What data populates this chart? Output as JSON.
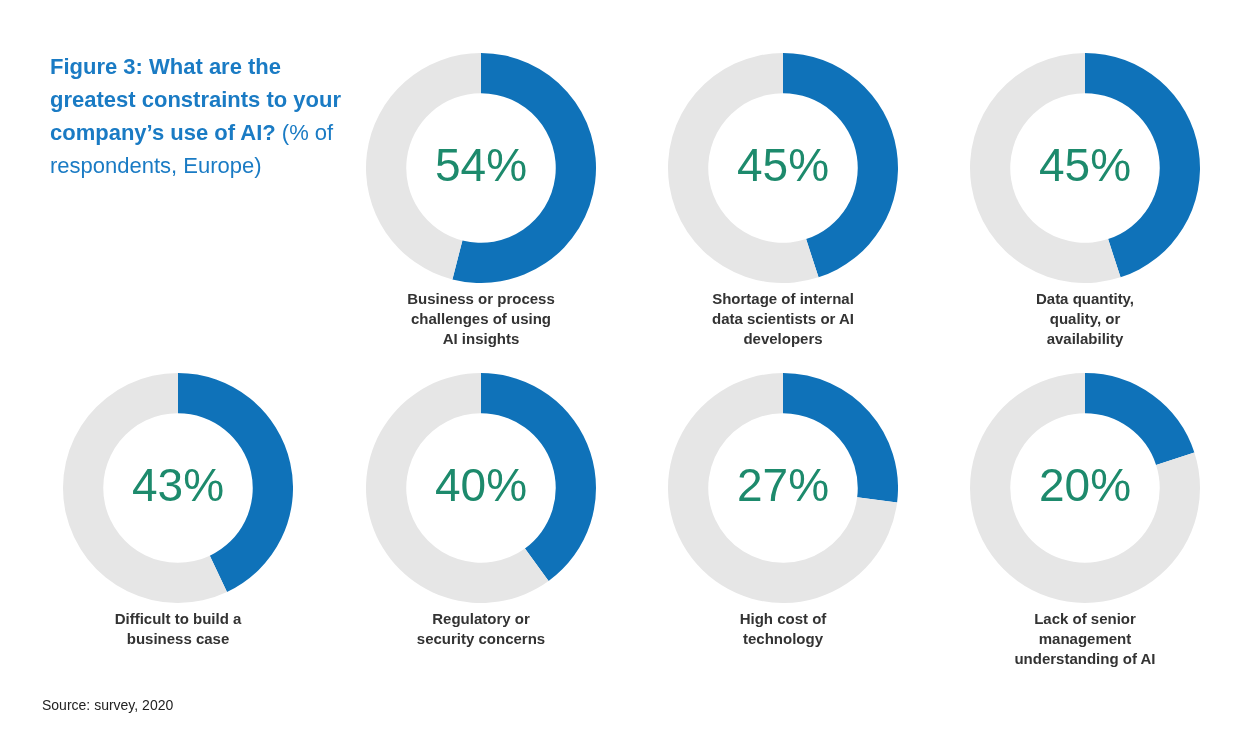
{
  "chart_data": [
    {
      "type": "other",
      "title": "Figure 3: What are the greatest constraints to your company’s use of AI?",
      "subtitle": "(% of respondents, Europe)",
      "annotations": [
        "Source: survey, 2020"
      ]
    },
    {
      "type": "donut",
      "title": "Business or process challenges of using AI insights",
      "categories": [
        null,
        null
      ],
      "values": [
        54,
        46
      ],
      "colors": [
        "#0f72b9",
        "#e6e6e6"
      ],
      "value_labels": [
        "54%",
        null
      ],
      "legend": false
    },
    {
      "type": "donut",
      "title": "Shortage of internal data scientists or AI developers",
      "categories": [
        null,
        null
      ],
      "values": [
        45,
        55
      ],
      "colors": [
        "#0f72b9",
        "#e6e6e6"
      ],
      "value_labels": [
        "45%",
        null
      ],
      "legend": false
    },
    {
      "type": "donut",
      "title": "Data quantity, quality, or availability",
      "categories": [
        null,
        null
      ],
      "values": [
        45,
        55
      ],
      "colors": [
        "#0f72b9",
        "#e6e6e6"
      ],
      "value_labels": [
        "45%",
        null
      ],
      "legend": false
    },
    {
      "type": "donut",
      "title": "Difficult to build a business case",
      "categories": [
        null,
        null
      ],
      "values": [
        43,
        57
      ],
      "colors": [
        "#0f72b9",
        "#e6e6e6"
      ],
      "value_labels": [
        "43%",
        null
      ],
      "legend": false
    },
    {
      "type": "donut",
      "title": "Regulatory or security concerns",
      "categories": [
        null,
        null
      ],
      "values": [
        40,
        60
      ],
      "colors": [
        "#0f72b9",
        "#e6e6e6"
      ],
      "value_labels": [
        "40%",
        null
      ],
      "legend": false
    },
    {
      "type": "donut",
      "title": "High cost of technology",
      "categories": [
        null,
        null
      ],
      "values": [
        27,
        73
      ],
      "colors": [
        "#0f72b9",
        "#e6e6e6"
      ],
      "value_labels": [
        "27%",
        null
      ],
      "legend": false
    },
    {
      "type": "donut",
      "title": "Lack of senior management understanding of AI",
      "categories": [
        null,
        null
      ],
      "values": [
        20,
        80
      ],
      "colors": [
        "#0f72b9",
        "#e6e6e6"
      ],
      "value_labels": [
        "20%",
        null
      ],
      "legend": false
    }
  ]
}
